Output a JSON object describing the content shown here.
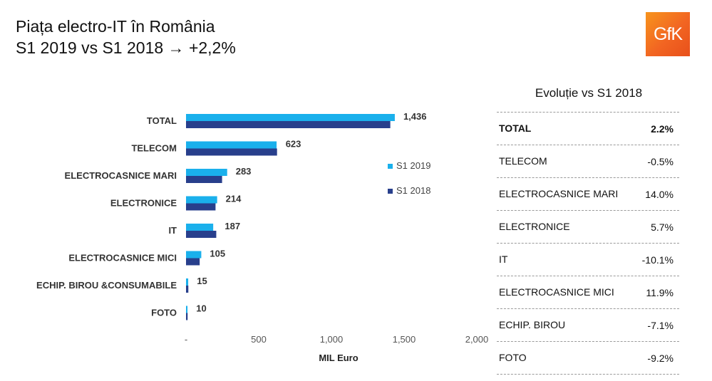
{
  "header": {
    "title_line1": "Piața electro-IT în România",
    "title_line2": "S1 2019 vs S1 2018 → +2,2%",
    "logo_text": "GfK"
  },
  "chart_data": {
    "type": "bar",
    "orientation": "horizontal",
    "categories": [
      "TOTAL",
      "TELECOM",
      "ELECTROCASNICE MARI",
      "ELECTRONICE",
      "IT",
      "ELECTROCASNICE MICI",
      "ECHIP. BIROU &CONSUMABILE",
      "FOTO"
    ],
    "series": [
      {
        "name": "S1 2019",
        "color": "#1ab0ec",
        "values": [
          1436,
          623,
          283,
          214,
          187,
          105,
          15,
          10
        ]
      },
      {
        "name": "S1 2018",
        "color": "#283f8c",
        "values": [
          1405,
          626,
          248,
          203,
          208,
          94,
          16,
          11
        ]
      }
    ],
    "data_labels": [
      "1,436",
      "623",
      "283",
      "214",
      "187",
      "105",
      "15",
      "10"
    ],
    "xlabel": "MIL Euro",
    "xlim": [
      0,
      2000
    ],
    "x_ticks": [
      {
        "value": 0,
        "label": "-"
      },
      {
        "value": 500,
        "label": "500"
      },
      {
        "value": 1000,
        "label": "1,000"
      },
      {
        "value": 1500,
        "label": "1,500"
      },
      {
        "value": 2000,
        "label": "2,000"
      }
    ],
    "grid": false,
    "legend_position": "right"
  },
  "evolution_table": {
    "title": "Evoluție vs S1 2018",
    "rows": [
      {
        "label": "TOTAL",
        "value": "2.2%"
      },
      {
        "label": "TELECOM",
        "value": "-0.5%"
      },
      {
        "label": "ELECTROCASNICE MARI",
        "value": "14.0%"
      },
      {
        "label": "ELECTRONICE",
        "value": "5.7%"
      },
      {
        "label": "IT",
        "value": "-10.1%"
      },
      {
        "label": "ELECTROCASNICE MICI",
        "value": "11.9%"
      },
      {
        "label": "ECHIP. BIROU",
        "value": "-7.1%"
      },
      {
        "label": "FOTO",
        "value": "-9.2%"
      }
    ]
  }
}
